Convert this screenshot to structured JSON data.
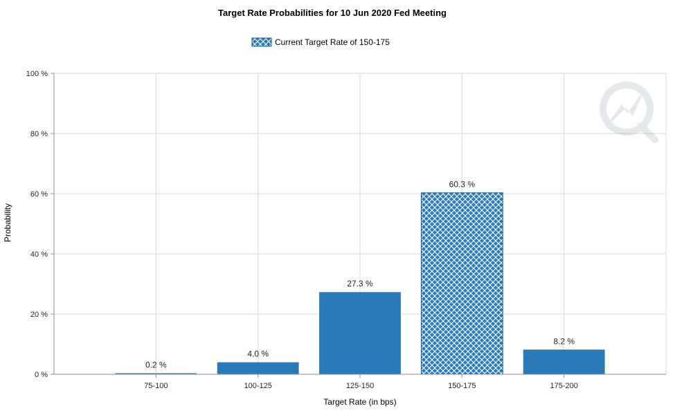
{
  "chart_data": {
    "type": "bar",
    "title": "Target Rate Probabilities for 10 Jun 2020 Fed Meeting",
    "legend": {
      "label": "Current Target Rate of 150-175",
      "placement": "top-center"
    },
    "xlabel": "Target Rate (in bps)",
    "ylabel": "Probability",
    "ylim": [
      0,
      100
    ],
    "yticks": [
      "0 %",
      "20 %",
      "40 %",
      "60 %",
      "80 %",
      "100 %"
    ],
    "ytick_values": [
      0,
      20,
      40,
      60,
      80,
      100
    ],
    "categories": [
      "75-100",
      "100-125",
      "125-150",
      "150-175",
      "175-200"
    ],
    "values": [
      0.2,
      4.0,
      27.3,
      60.3,
      8.2
    ],
    "data_labels": [
      "0.2 %",
      "4.0 %",
      "27.3 %",
      "60.3 %",
      "8.2 %"
    ],
    "highlight_category": "150-175",
    "grid": true,
    "colors": {
      "bar": "#2a7ab8",
      "hatch_bg": "#2a7ab8",
      "hatch_line": "#ffffff",
      "grid": "#d9d9d9",
      "axis": "#8c8c8c"
    }
  }
}
